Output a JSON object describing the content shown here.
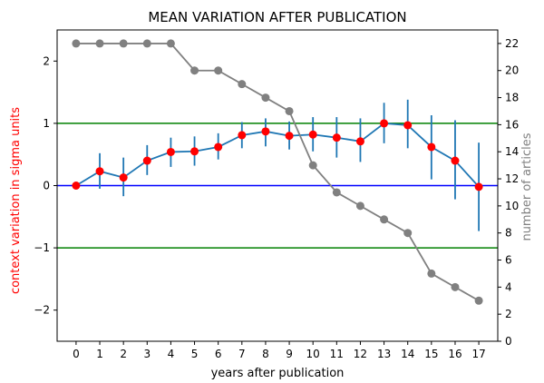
{
  "chart_data": {
    "type": "line",
    "title": "MEAN VARIATION AFTER PUBLICATION",
    "xlabel": "years after publication",
    "ylabel_left": "context variation in sigma units",
    "ylabel_right": "number of articles",
    "x": [
      0,
      1,
      2,
      3,
      4,
      5,
      6,
      7,
      8,
      9,
      10,
      11,
      12,
      13,
      14,
      15,
      16,
      17
    ],
    "xlim": [
      -0.8,
      17.8
    ],
    "ylim_left": [
      -2.5,
      2.5
    ],
    "ylim_right": [
      0,
      23
    ],
    "yticks_left": [
      -2,
      -1,
      0,
      1,
      2
    ],
    "yticks_right": [
      0,
      2,
      4,
      6,
      8,
      10,
      12,
      14,
      16,
      18,
      20,
      22
    ],
    "reference_lines": [
      {
        "y": 1,
        "color": "#008000"
      },
      {
        "y": 0,
        "color": "#0000ff"
      },
      {
        "y": -1,
        "color": "#008000"
      }
    ],
    "series": [
      {
        "axis": "left",
        "values": [
          0.0,
          0.23,
          0.13,
          0.4,
          0.54,
          0.55,
          0.62,
          0.81,
          0.87,
          0.8,
          0.82,
          0.77,
          0.71,
          1.0,
          0.97,
          0.62,
          0.4,
          -0.02
        ],
        "error_low": [
          0.0,
          -0.05,
          -0.17,
          0.17,
          0.3,
          0.32,
          0.42,
          0.6,
          0.63,
          0.58,
          0.55,
          0.45,
          0.38,
          0.68,
          0.6,
          0.1,
          -0.22,
          -0.73
        ],
        "error_high": [
          0.0,
          0.52,
          0.45,
          0.65,
          0.77,
          0.79,
          0.84,
          1.02,
          1.08,
          1.03,
          1.1,
          1.1,
          1.08,
          1.33,
          1.38,
          1.13,
          1.05,
          0.69
        ],
        "line_color": "#1f77b4",
        "marker_color": "#ff0000"
      },
      {
        "axis": "right",
        "values": [
          22,
          22,
          22,
          22,
          22,
          20,
          20,
          19,
          18,
          17,
          13,
          11,
          10,
          9,
          8,
          5,
          4,
          3
        ],
        "line_color": "#808080",
        "marker_color": "#808080"
      }
    ],
    "colors": {
      "left_label": "#ff0000",
      "right_label": "#808080"
    }
  }
}
